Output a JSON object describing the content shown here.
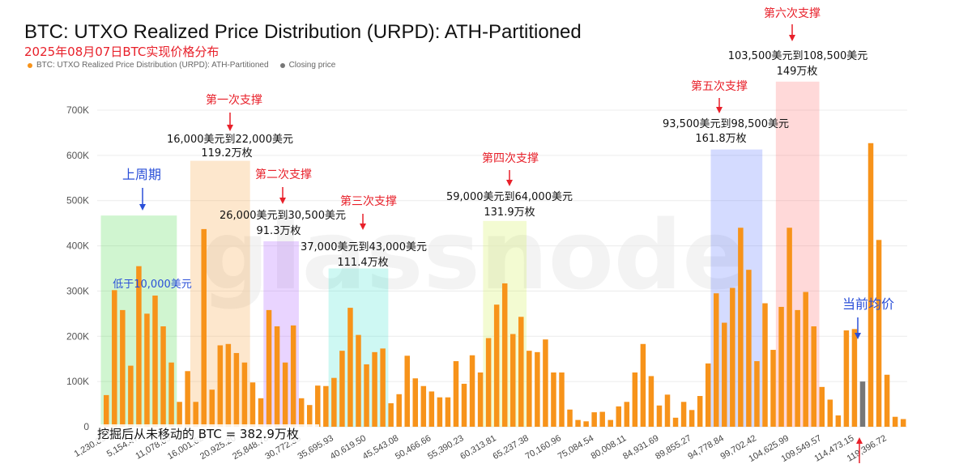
{
  "title": "BTC: UTXO Realized Price Distribution (URPD): ATH-Partitioned",
  "subtitle": "2025年08月07日BTC实现价格分布",
  "legend": {
    "series": "BTC: UTXO Realized Price Distribution (URPD): ATH-Partitioned",
    "closing": "Closing price",
    "series_color": "#f7931a",
    "closing_color": "#777777"
  },
  "watermark": "glassnode",
  "chart_data": {
    "type": "bar",
    "title": "BTC: UTXO Realized Price Distribution (URPD): ATH-Partitioned",
    "ylim": [
      0,
      750000
    ],
    "yticks": [
      0,
      100000,
      200000,
      300000,
      400000,
      500000,
      600000,
      700000
    ],
    "ytick_labels": [
      "0",
      "100K",
      "200K",
      "300K",
      "400K",
      "500K",
      "600K",
      "700K"
    ],
    "xtick_labels": [
      "1,230.85",
      "5,154.47",
      "11,078.05",
      "16,001.62",
      "20,925.20",
      "25,848.78",
      "30,772.35",
      "35,695.93",
      "40,619.50",
      "45,543.08",
      "50,466.66",
      "55,390.23",
      "60,313.81",
      "65,237.38",
      "70,160.96",
      "75,084.54",
      "80,008.11",
      "84,931.69",
      "89,855.27",
      "94,778.84",
      "99,702.42",
      "104,625.99",
      "109,549.57",
      "114,473.15",
      "119,396.72"
    ],
    "xtick_bar_index": [
      0,
      4,
      8,
      12,
      16,
      20,
      24,
      28,
      32,
      36,
      40,
      44,
      48,
      52,
      56,
      60,
      64,
      68,
      72,
      76,
      80,
      84,
      88,
      92,
      96
    ],
    "values": [
      70000,
      302000,
      258000,
      135000,
      355000,
      250000,
      290000,
      222000,
      142000,
      55000,
      123000,
      55000,
      437000,
      82000,
      180000,
      183000,
      163000,
      142000,
      98000,
      63000,
      258000,
      222000,
      142000,
      224000,
      63000,
      48000,
      91000,
      90000,
      108000,
      168000,
      263000,
      203000,
      138000,
      165000,
      173000,
      52000,
      72000,
      157000,
      107000,
      90000,
      78000,
      65000,
      65000,
      145000,
      95000,
      158000,
      120000,
      196000,
      270000,
      317000,
      205000,
      243000,
      168000,
      165000,
      193000,
      120000,
      120000,
      38000,
      15000,
      12000,
      32000,
      33000,
      15000,
      45000,
      55000,
      120000,
      183000,
      112000,
      47000,
      71000,
      20000,
      55000,
      37000,
      68000,
      140000,
      295000,
      230000,
      307000,
      440000,
      347000,
      145000,
      273000,
      170000,
      265000,
      440000,
      258000,
      298000,
      222000,
      88000,
      60000,
      25000,
      213000,
      216000,
      100000,
      627000,
      413000,
      115000,
      22000,
      17000
    ],
    "closing_bar_index": 93,
    "bar_color": "#f7931a",
    "closing_color": "#777777"
  },
  "regions": [
    {
      "name": "region-previous-cycle",
      "color": "#2bd32b",
      "start": 0,
      "end": 8,
      "top": 467000
    },
    {
      "name": "region-support-1",
      "color": "#f7931a",
      "start": 11,
      "end": 17,
      "top": 588000
    },
    {
      "name": "region-support-2",
      "color": "#9b3dff",
      "start": 20,
      "end": 23,
      "top": 410000
    },
    {
      "name": "region-support-3",
      "color": "#1ee0c8",
      "start": 28,
      "end": 34,
      "top": 350000
    },
    {
      "name": "region-support-4",
      "color": "#c8ee30",
      "start": 47,
      "end": 51,
      "top": 455000
    },
    {
      "name": "region-support-5",
      "color": "#3a5cff",
      "start": 75,
      "end": 80,
      "top": 613000
    },
    {
      "name": "region-support-6",
      "color": "#ff5050",
      "start": 83,
      "end": 87,
      "top": 763000
    }
  ],
  "annotations": {
    "previous_cycle_label": "上周期",
    "below_10000": "低于10,000美元",
    "support1_label": "第一次支撑",
    "support1_range": "16,000美元到22,000美元",
    "support1_amount": "119.2万枚",
    "support2_label": "第二次支撑",
    "support2_range": "26,000美元到30,500美元",
    "support2_amount": "91.3万枚",
    "support3_label": "第三次支撑",
    "support3_range": "37,000美元到43,000美元",
    "support3_amount": "111.4万枚",
    "support4_label": "第四次支撑",
    "support4_range": "59,000美元到64,000美元",
    "support4_amount": "131.9万枚",
    "support5_label": "第五次支撑",
    "support5_range": "93,500美元到98,500美元",
    "support5_amount": "161.8万枚",
    "support6_label": "第六次支撑",
    "support6_range": "103,500美元到108,500美元",
    "support6_amount": "149万枚",
    "current_avg_label": "当前均价",
    "unmoved_btc": "挖掘后从未移动的 BTC = 382.9万枚"
  }
}
